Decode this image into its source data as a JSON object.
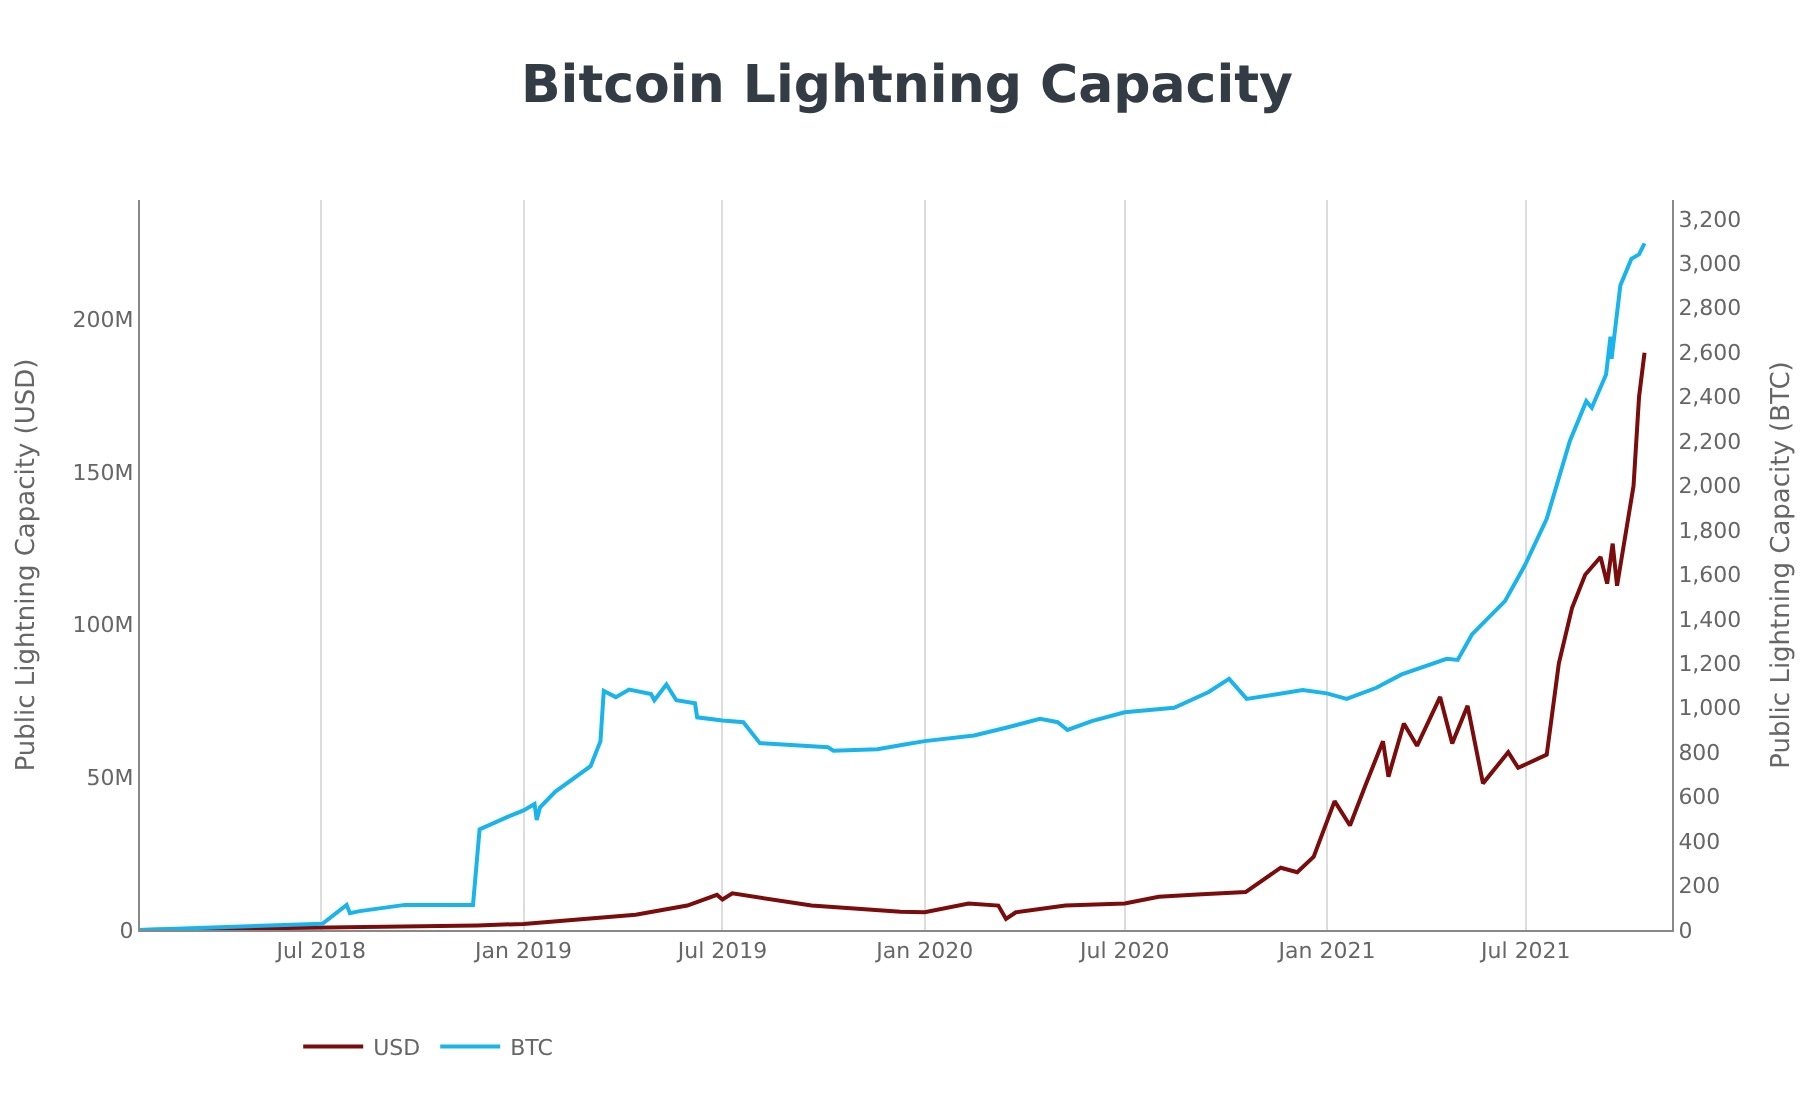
{
  "chart_data": {
    "type": "line",
    "title": "Bitcoin Lightning Capacity",
    "ylabel": "Public Lightning Capacity (USD)",
    "y2label": "Public Lightning Capacity (BTC)",
    "xlim": [
      "2018-01-17",
      "2021-11-11"
    ],
    "xticks": [
      {
        "value": "2018-07-01",
        "label": "Jul 2018"
      },
      {
        "value": "2019-01-01",
        "label": "Jan 2019"
      },
      {
        "value": "2019-07-01",
        "label": "Jul 2019"
      },
      {
        "value": "2020-01-01",
        "label": "Jan 2020"
      },
      {
        "value": "2020-07-01",
        "label": "Jul 2020"
      },
      {
        "value": "2021-01-01",
        "label": "Jan 2021"
      },
      {
        "value": "2021-07-01",
        "label": "Jul 2021"
      }
    ],
    "ylim": [
      0,
      239000000
    ],
    "yticks": [
      {
        "value": 0,
        "label": "0"
      },
      {
        "value": 50000000,
        "label": "50M"
      },
      {
        "value": 100000000,
        "label": "100M"
      },
      {
        "value": 150000000,
        "label": "150M"
      },
      {
        "value": 200000000,
        "label": "200M"
      }
    ],
    "y2lim": [
      0,
      3285
    ],
    "y2ticks": [
      0,
      200,
      400,
      600,
      800,
      {
        "value": 1000,
        "label": "1,000"
      },
      {
        "value": 1200,
        "label": "1,200"
      },
      {
        "value": 1400,
        "label": "1,400"
      },
      {
        "value": 1600,
        "label": "1,600"
      },
      {
        "value": 1800,
        "label": "1,800"
      },
      {
        "value": 2000,
        "label": "2,000"
      },
      {
        "value": 2200,
        "label": "2,200"
      },
      {
        "value": 2400,
        "label": "2,400"
      },
      {
        "value": 2600,
        "label": "2,600"
      },
      {
        "value": 2800,
        "label": "2,800"
      },
      {
        "value": 3000,
        "label": "3,000"
      },
      {
        "value": 3200,
        "label": "3,200"
      }
    ],
    "grid": "x",
    "legend": "bottom left",
    "marker": "none",
    "line_style": "solid",
    "series": [
      {
        "name": "USD",
        "color": "#7b0c0c",
        "x": [
          "2018-01-17",
          "2018-11-20",
          "2019-01-01",
          "2019-04-13",
          "2019-05-30",
          "2019-06-26",
          "2019-07-01",
          "2019-07-10",
          "2019-09-20",
          "2019-12-10",
          "2020-01-01",
          "2020-02-10",
          "2020-03-08",
          "2020-03-15",
          "2020-03-24",
          "2020-05-08",
          "2020-07-01",
          "2020-08-01",
          "2020-09-05",
          "2020-10-19",
          "2020-11-20",
          "2020-12-05",
          "2020-12-20",
          "2021-01-08",
          "2021-01-22",
          "2021-02-05",
          "2021-02-21",
          "2021-02-26",
          "2021-03-12",
          "2021-03-24",
          "2021-04-14",
          "2021-04-25",
          "2021-05-09",
          "2021-05-23",
          "2021-06-15",
          "2021-06-24",
          "2021-07-20",
          "2021-07-31",
          "2021-08-12",
          "2021-08-24",
          "2021-09-07",
          "2021-09-13",
          "2021-09-18",
          "2021-09-22",
          "2021-09-27",
          "2021-10-07",
          "2021-10-12",
          "2021-10-17"
        ],
        "values": [
          0,
          1500000,
          2000000,
          5000000,
          8000000,
          11500000,
          10000000,
          12000000,
          8000000,
          6000000,
          5800000,
          8700000,
          8000000,
          3600000,
          5800000,
          8000000,
          8700000,
          10900000,
          11600000,
          12400000,
          20400000,
          18900000,
          24000000,
          42200000,
          34200000,
          47300000,
          61800000,
          50200000,
          67600000,
          60300000,
          76300000,
          61100000,
          73400000,
          48000000,
          58200000,
          53100000,
          57400000,
          87200000,
          105400000,
          116300000,
          122100000,
          113400000,
          126500000,
          112700000,
          123600000,
          145400000,
          174500000,
          189000000
        ]
      },
      {
        "name": "BTC",
        "color": "#1ab4ec",
        "axis": "y2",
        "x": [
          "2018-01-17",
          "2018-07-02",
          "2018-07-24",
          "2018-07-27",
          "2018-08-05",
          "2018-09-15",
          "2018-11-16",
          "2018-11-22",
          "2018-12-18",
          "2019-01-01",
          "2019-01-11",
          "2019-01-13",
          "2019-01-16",
          "2019-01-30",
          "2019-03-03",
          "2019-03-12",
          "2019-03-15",
          "2019-03-26",
          "2019-04-07",
          "2019-04-27",
          "2019-04-30",
          "2019-05-11",
          "2019-05-20",
          "2019-06-06",
          "2019-06-08",
          "2019-07-01",
          "2019-07-20",
          "2019-08-04",
          "2019-10-05",
          "2019-10-10",
          "2019-11-19",
          "2019-12-15",
          "2020-01-01",
          "2020-02-15",
          "2020-03-15",
          "2020-04-15",
          "2020-05-01",
          "2020-05-10",
          "2020-06-01",
          "2020-07-01",
          "2020-08-15",
          "2020-09-15",
          "2020-10-04",
          "2020-10-20",
          "2020-11-15",
          "2020-12-10",
          "2021-01-01",
          "2021-01-19",
          "2021-02-15",
          "2021-03-10",
          "2021-04-20",
          "2021-04-30",
          "2021-05-13",
          "2021-06-12",
          "2021-06-30",
          "2021-07-20",
          "2021-08-10",
          "2021-08-25",
          "2021-08-30",
          "2021-09-12",
          "2021-09-16",
          "2021-09-17",
          "2021-09-25",
          "2021-10-05",
          "2021-10-12",
          "2021-10-17"
        ],
        "values": [
          0,
          28,
          113,
          76,
          85,
          113,
          113,
          453,
          510,
          538,
          567,
          495,
          552,
          623,
          737,
          850,
          1076,
          1048,
          1082,
          1062,
          1034,
          1105,
          1034,
          1020,
          957,
          943,
          935,
          841,
          822,
          807,
          813,
          836,
          850,
          875,
          910,
          950,
          935,
          900,
          940,
          980,
          1000,
          1070,
          1130,
          1040,
          1060,
          1080,
          1065,
          1040,
          1090,
          1150,
          1220,
          1215,
          1330,
          1480,
          1640,
          1850,
          2200,
          2380,
          2350,
          2500,
          2670,
          2570,
          2900,
          3020,
          3040,
          3090
        ]
      }
    ]
  }
}
